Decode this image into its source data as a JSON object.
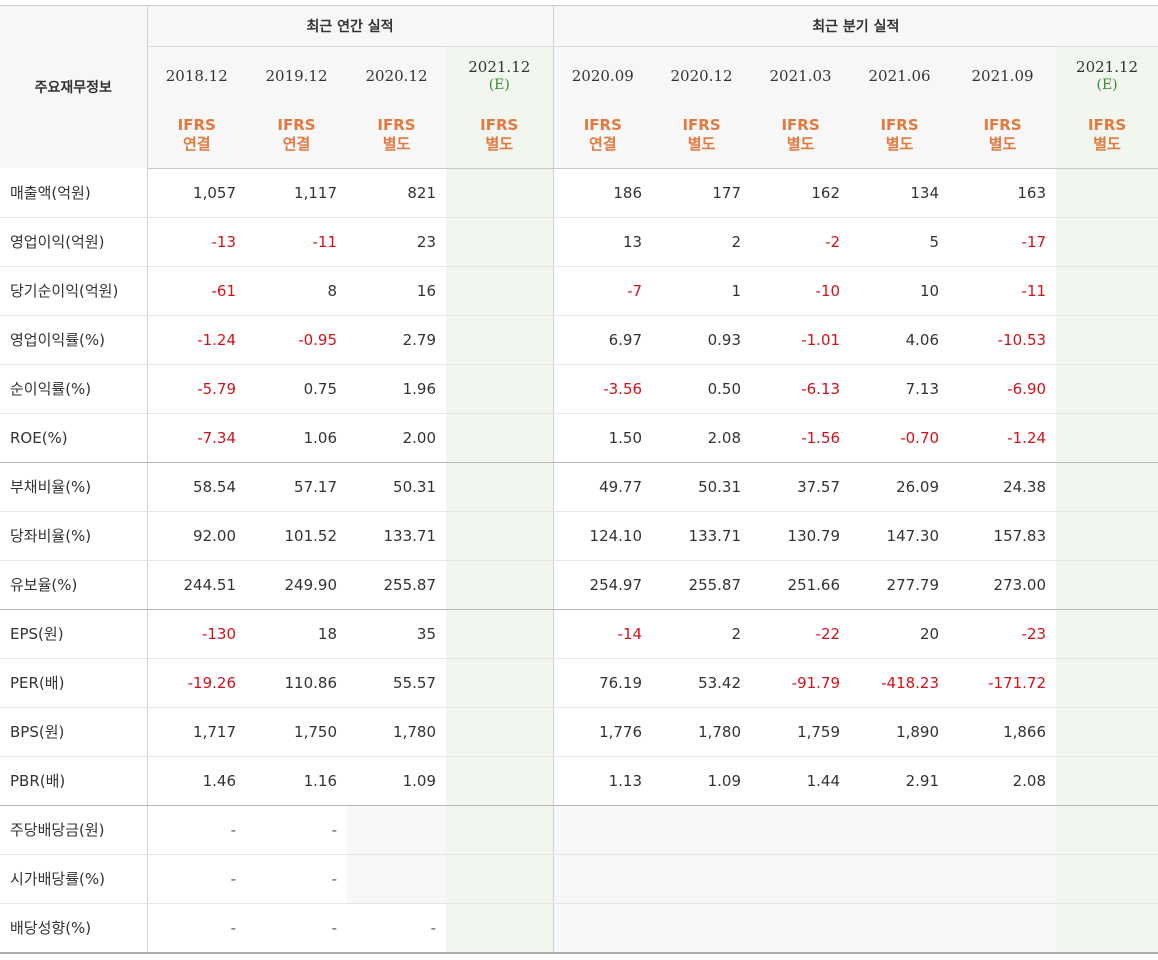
{
  "header": {
    "corner_label": "주요재무정보",
    "annual_group_label": "최근 연간 실적",
    "quarter_group_label": "최근 분기 실적"
  },
  "columns": [
    {
      "date": "2018.12",
      "estimate": "",
      "std1": "IFRS",
      "std2": "연결"
    },
    {
      "date": "2019.12",
      "estimate": "",
      "std1": "IFRS",
      "std2": "연결"
    },
    {
      "date": "2020.12",
      "estimate": "",
      "std1": "IFRS",
      "std2": "별도"
    },
    {
      "date": "2021.12",
      "estimate": "(E)",
      "std1": "IFRS",
      "std2": "별도"
    },
    {
      "date": "2020.09",
      "estimate": "",
      "std1": "IFRS",
      "std2": "연결"
    },
    {
      "date": "2020.12",
      "estimate": "",
      "std1": "IFRS",
      "std2": "별도"
    },
    {
      "date": "2021.03",
      "estimate": "",
      "std1": "IFRS",
      "std2": "별도"
    },
    {
      "date": "2021.06",
      "estimate": "",
      "std1": "IFRS",
      "std2": "별도"
    },
    {
      "date": "2021.09",
      "estimate": "",
      "std1": "IFRS",
      "std2": "별도"
    },
    {
      "date": "2021.12",
      "estimate": "(E)",
      "std1": "IFRS",
      "std2": "별도"
    }
  ],
  "rows": [
    {
      "label": "매출액(억원)",
      "values": [
        "1,057",
        "1,117",
        "821",
        "",
        "186",
        "177",
        "162",
        "134",
        "163",
        ""
      ]
    },
    {
      "label": "영업이익(억원)",
      "values": [
        "-13",
        "-11",
        "23",
        "",
        "13",
        "2",
        "-2",
        "5",
        "-17",
        ""
      ]
    },
    {
      "label": "당기순이익(억원)",
      "values": [
        "-61",
        "8",
        "16",
        "",
        "-7",
        "1",
        "-10",
        "10",
        "-11",
        ""
      ]
    },
    {
      "label": "영업이익률(%)",
      "values": [
        "-1.24",
        "-0.95",
        "2.79",
        "",
        "6.97",
        "0.93",
        "-1.01",
        "4.06",
        "-10.53",
        ""
      ]
    },
    {
      "label": "순이익률(%)",
      "values": [
        "-5.79",
        "0.75",
        "1.96",
        "",
        "-3.56",
        "0.50",
        "-6.13",
        "7.13",
        "-6.90",
        ""
      ]
    },
    {
      "label": "ROE(%)",
      "values": [
        "-7.34",
        "1.06",
        "2.00",
        "",
        "1.50",
        "2.08",
        "-1.56",
        "-0.70",
        "-1.24",
        ""
      ]
    },
    {
      "label": "부채비율(%)",
      "values": [
        "58.54",
        "57.17",
        "50.31",
        "",
        "49.77",
        "50.31",
        "37.57",
        "26.09",
        "24.38",
        ""
      ]
    },
    {
      "label": "당좌비율(%)",
      "values": [
        "92.00",
        "101.52",
        "133.71",
        "",
        "124.10",
        "133.71",
        "130.79",
        "147.30",
        "157.83",
        ""
      ]
    },
    {
      "label": "유보율(%)",
      "values": [
        "244.51",
        "249.90",
        "255.87",
        "",
        "254.97",
        "255.87",
        "251.66",
        "277.79",
        "273.00",
        ""
      ]
    },
    {
      "label": "EPS(원)",
      "values": [
        "-130",
        "18",
        "35",
        "",
        "-14",
        "2",
        "-22",
        "20",
        "-23",
        ""
      ]
    },
    {
      "label": "PER(배)",
      "values": [
        "-19.26",
        "110.86",
        "55.57",
        "",
        "76.19",
        "53.42",
        "-91.79",
        "-418.23",
        "-171.72",
        ""
      ]
    },
    {
      "label": "BPS(원)",
      "values": [
        "1,717",
        "1,750",
        "1,780",
        "",
        "1,776",
        "1,780",
        "1,759",
        "1,890",
        "1,866",
        ""
      ]
    },
    {
      "label": "PBR(배)",
      "values": [
        "1.46",
        "1.16",
        "1.09",
        "",
        "1.13",
        "1.09",
        "1.44",
        "2.91",
        "2.08",
        ""
      ]
    },
    {
      "label": "주당배당금(원)",
      "values": [
        "-",
        "-",
        "",
        "",
        "",
        "",
        "",
        "",
        "",
        ""
      ]
    },
    {
      "label": "시가배당률(%)",
      "values": [
        "-",
        "-",
        "",
        "",
        "",
        "",
        "",
        "",
        "",
        ""
      ]
    },
    {
      "label": "배당성향(%)",
      "values": [
        "-",
        "-",
        "-",
        "",
        "",
        "",
        "",
        "",
        "",
        ""
      ]
    }
  ],
  "colors": {
    "negative": "#d0121b",
    "accounting_standard": "#e27a3f",
    "estimate": "#3a8a3a",
    "estimate_column_bg": "#f1f6ee",
    "header_bg": "#f7f7f7"
  }
}
